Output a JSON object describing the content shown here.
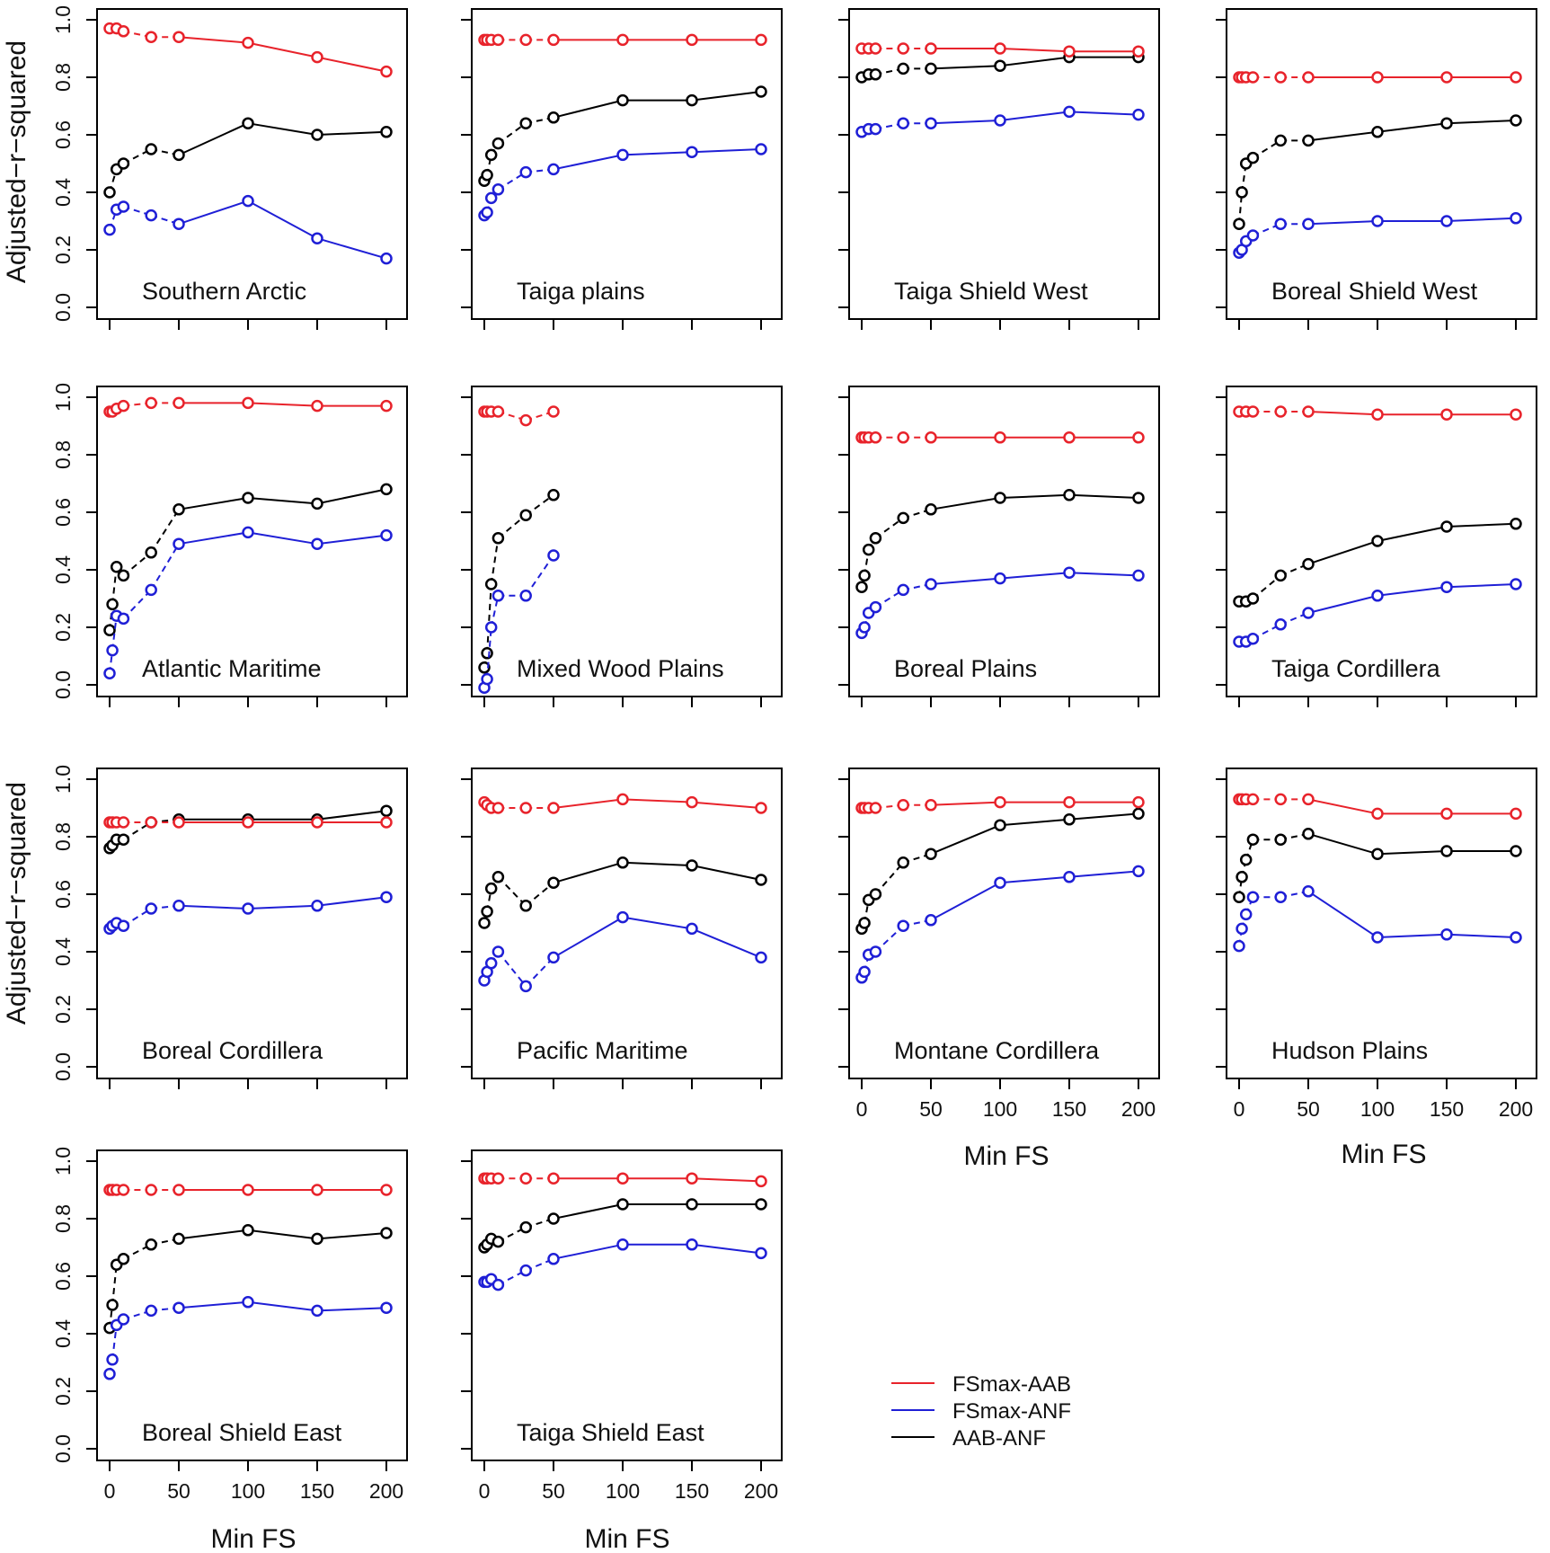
{
  "chart_data": {
    "type": "line",
    "ylabel": "Adjusted−r−squared",
    "xlabel": "Min FS",
    "ylim": [
      0,
      1
    ],
    "xlim": [
      0,
      200
    ],
    "y_ticks": [
      "0.0",
      "0.2",
      "0.4",
      "0.6",
      "0.8",
      "1.0"
    ],
    "x_ticks": [
      "0",
      "50",
      "100",
      "150",
      "200"
    ],
    "legend": [
      {
        "name": "FSmax-AAB",
        "color": "#e8232b"
      },
      {
        "name": "FSmax-ANF",
        "color": "#1f1fd6"
      },
      {
        "name": "AAB-ANF",
        "color": "#000000"
      }
    ],
    "panels": [
      {
        "region": "Southern Arctic",
        "x": [
          0,
          5,
          10,
          30,
          50,
          100,
          150,
          200
        ],
        "series": {
          "FSmax-AAB": [
            0.97,
            0.97,
            0.96,
            0.94,
            0.94,
            0.92,
            0.87,
            0.82
          ],
          "AAB-ANF": [
            0.4,
            0.48,
            0.5,
            0.55,
            0.53,
            0.64,
            0.6,
            0.61
          ],
          "FSmax-ANF": [
            0.27,
            0.34,
            0.35,
            0.32,
            0.29,
            0.37,
            0.24,
            0.17
          ]
        }
      },
      {
        "region": "Taiga plains",
        "x": [
          0,
          2,
          5,
          10,
          30,
          50,
          100,
          150,
          200
        ],
        "series": {
          "FSmax-AAB": [
            0.93,
            0.93,
            0.93,
            0.93,
            0.93,
            0.93,
            0.93,
            0.93,
            0.93
          ],
          "AAB-ANF": [
            0.44,
            0.46,
            0.53,
            0.57,
            0.64,
            0.66,
            0.72,
            0.72,
            0.75
          ],
          "FSmax-ANF": [
            0.32,
            0.33,
            0.38,
            0.41,
            0.47,
            0.48,
            0.53,
            0.54,
            0.55
          ]
        }
      },
      {
        "region": "Taiga Shield West",
        "x": [
          0,
          5,
          10,
          30,
          50,
          100,
          150,
          200
        ],
        "series": {
          "FSmax-AAB": [
            0.9,
            0.9,
            0.9,
            0.9,
            0.9,
            0.9,
            0.89,
            0.89
          ],
          "AAB-ANF": [
            0.8,
            0.81,
            0.81,
            0.83,
            0.83,
            0.84,
            0.87,
            0.87
          ],
          "FSmax-ANF": [
            0.61,
            0.62,
            0.62,
            0.64,
            0.64,
            0.65,
            0.68,
            0.67
          ]
        }
      },
      {
        "region": "Boreal Shield West",
        "x": [
          0,
          2,
          5,
          10,
          30,
          50,
          100,
          150,
          200
        ],
        "series": {
          "FSmax-AAB": [
            0.8,
            0.8,
            0.8,
            0.8,
            0.8,
            0.8,
            0.8,
            0.8,
            0.8
          ],
          "AAB-ANF": [
            0.29,
            0.4,
            0.5,
            0.52,
            0.58,
            0.58,
            0.61,
            0.64,
            0.65
          ],
          "FSmax-ANF": [
            0.19,
            0.2,
            0.23,
            0.25,
            0.29,
            0.29,
            0.3,
            0.3,
            0.31
          ]
        }
      },
      {
        "region": "Atlantic Maritime",
        "x": [
          0,
          2,
          5,
          10,
          30,
          50,
          100,
          150,
          200
        ],
        "series": {
          "FSmax-AAB": [
            0.95,
            0.95,
            0.96,
            0.97,
            0.98,
            0.98,
            0.98,
            0.97,
            0.97
          ],
          "AAB-ANF": [
            0.19,
            0.28,
            0.41,
            0.38,
            0.46,
            0.61,
            0.65,
            0.63,
            0.68
          ],
          "FSmax-ANF": [
            0.04,
            0.12,
            0.24,
            0.23,
            0.33,
            0.49,
            0.53,
            0.49,
            0.52
          ]
        }
      },
      {
        "region": "Mixed Wood Plains",
        "x": [
          0,
          2,
          5,
          10,
          30,
          50
        ],
        "series": {
          "FSmax-AAB": [
            0.95,
            0.95,
            0.95,
            0.95,
            0.92,
            0.95
          ],
          "AAB-ANF": [
            0.06,
            0.11,
            0.35,
            0.51,
            0.59,
            0.66
          ],
          "FSmax-ANF": [
            -0.01,
            0.02,
            0.2,
            0.31,
            0.31,
            0.45
          ]
        }
      },
      {
        "region": "Boreal Plains",
        "x": [
          0,
          2,
          5,
          10,
          30,
          50,
          100,
          150,
          200
        ],
        "series": {
          "FSmax-AAB": [
            0.86,
            0.86,
            0.86,
            0.86,
            0.86,
            0.86,
            0.86,
            0.86,
            0.86
          ],
          "AAB-ANF": [
            0.34,
            0.38,
            0.47,
            0.51,
            0.58,
            0.61,
            0.65,
            0.66,
            0.65
          ],
          "FSmax-ANF": [
            0.18,
            0.2,
            0.25,
            0.27,
            0.33,
            0.35,
            0.37,
            0.39,
            0.38
          ]
        }
      },
      {
        "region": "Taiga Cordillera",
        "x": [
          0,
          5,
          10,
          30,
          50,
          100,
          150,
          200
        ],
        "series": {
          "FSmax-AAB": [
            0.95,
            0.95,
            0.95,
            0.95,
            0.95,
            0.94,
            0.94,
            0.94
          ],
          "AAB-ANF": [
            0.29,
            0.29,
            0.3,
            0.38,
            0.42,
            0.5,
            0.55,
            0.56
          ],
          "FSmax-ANF": [
            0.15,
            0.15,
            0.16,
            0.21,
            0.25,
            0.31,
            0.34,
            0.35
          ]
        }
      },
      {
        "region": "Boreal Cordillera",
        "x": [
          0,
          2,
          5,
          10,
          30,
          50,
          100,
          150,
          200
        ],
        "series": {
          "FSmax-AAB": [
            0.85,
            0.85,
            0.85,
            0.85,
            0.85,
            0.85,
            0.85,
            0.85,
            0.85
          ],
          "AAB-ANF": [
            0.76,
            0.77,
            0.79,
            0.79,
            0.85,
            0.86,
            0.86,
            0.86,
            0.89
          ],
          "FSmax-ANF": [
            0.48,
            0.49,
            0.5,
            0.49,
            0.55,
            0.56,
            0.55,
            0.56,
            0.59
          ]
        }
      },
      {
        "region": "Pacific Maritime",
        "x": [
          0,
          2,
          5,
          10,
          30,
          50,
          100,
          150,
          200
        ],
        "series": {
          "FSmax-AAB": [
            0.92,
            0.91,
            0.9,
            0.9,
            0.9,
            0.9,
            0.93,
            0.92,
            0.9
          ],
          "AAB-ANF": [
            0.5,
            0.54,
            0.62,
            0.66,
            0.56,
            0.64,
            0.71,
            0.7,
            0.65
          ],
          "FSmax-ANF": [
            0.3,
            0.33,
            0.36,
            0.4,
            0.28,
            0.38,
            0.52,
            0.48,
            0.38
          ]
        }
      },
      {
        "region": "Montane Cordillera",
        "x": [
          0,
          2,
          5,
          10,
          30,
          50,
          100,
          150,
          200
        ],
        "series": {
          "FSmax-AAB": [
            0.9,
            0.9,
            0.9,
            0.9,
            0.91,
            0.91,
            0.92,
            0.92,
            0.92
          ],
          "AAB-ANF": [
            0.48,
            0.5,
            0.58,
            0.6,
            0.71,
            0.74,
            0.84,
            0.86,
            0.88
          ],
          "FSmax-ANF": [
            0.31,
            0.33,
            0.39,
            0.4,
            0.49,
            0.51,
            0.64,
            0.66,
            0.68
          ]
        }
      },
      {
        "region": "Hudson Plains",
        "x": [
          0,
          2,
          5,
          10,
          30,
          50,
          100,
          150,
          200
        ],
        "series": {
          "FSmax-AAB": [
            0.93,
            0.93,
            0.93,
            0.93,
            0.93,
            0.93,
            0.88,
            0.88,
            0.88
          ],
          "AAB-ANF": [
            0.59,
            0.66,
            0.72,
            0.79,
            0.79,
            0.81,
            0.74,
            0.75,
            0.75
          ],
          "FSmax-ANF": [
            0.42,
            0.48,
            0.53,
            0.59,
            0.59,
            0.61,
            0.45,
            0.46,
            0.45
          ]
        }
      },
      {
        "region": "Boreal Shield East",
        "x": [
          0,
          2,
          5,
          10,
          30,
          50,
          100,
          150,
          200
        ],
        "series": {
          "FSmax-AAB": [
            0.9,
            0.9,
            0.9,
            0.9,
            0.9,
            0.9,
            0.9,
            0.9,
            0.9
          ],
          "AAB-ANF": [
            0.42,
            0.5,
            0.64,
            0.66,
            0.71,
            0.73,
            0.76,
            0.73,
            0.75
          ],
          "FSmax-ANF": [
            0.26,
            0.31,
            0.43,
            0.45,
            0.48,
            0.49,
            0.51,
            0.48,
            0.49
          ]
        }
      },
      {
        "region": "Taiga Shield East",
        "x": [
          0,
          2,
          5,
          10,
          30,
          50,
          100,
          150,
          200
        ],
        "series": {
          "FSmax-AAB": [
            0.94,
            0.94,
            0.94,
            0.94,
            0.94,
            0.94,
            0.94,
            0.94,
            0.93
          ],
          "AAB-ANF": [
            0.7,
            0.71,
            0.73,
            0.72,
            0.77,
            0.8,
            0.85,
            0.85,
            0.85
          ],
          "FSmax-ANF": [
            0.58,
            0.58,
            0.59,
            0.57,
            0.62,
            0.66,
            0.71,
            0.71,
            0.68
          ]
        }
      }
    ]
  }
}
